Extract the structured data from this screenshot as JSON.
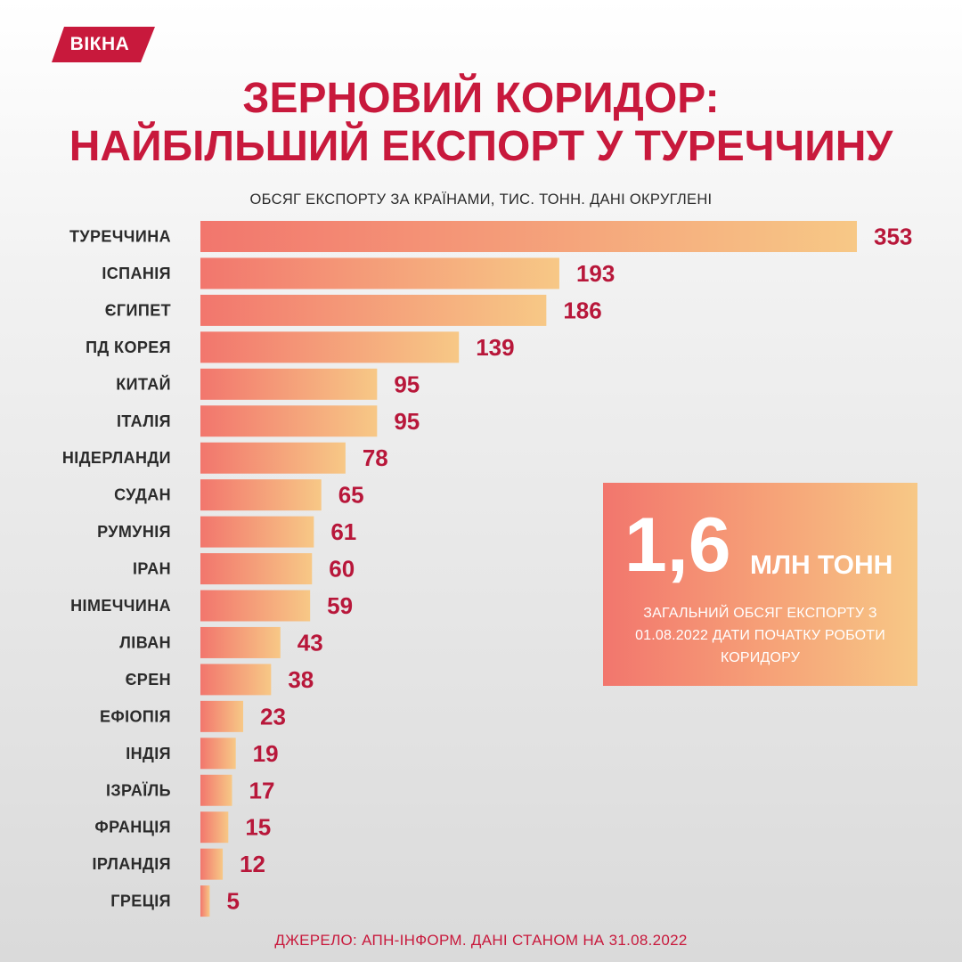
{
  "brand": {
    "logo_text": "ВІКНА",
    "color": "#c8193c"
  },
  "title": {
    "line1": "ЗЕРНОВИЙ КОРИДОР:",
    "line2": "НАЙБІЛЬШИЙ ЕКСПОРТ У ТУРЕЧЧИНУ"
  },
  "subtitle": "ОБСЯГ ЕКСПОРТУ ЗА КРАЇНАМИ, ТИС. ТОНН. ДАНІ ОКРУГЛЕНІ",
  "chart_data": {
    "type": "bar",
    "orientation": "horizontal",
    "title": "ЗЕРНОВИЙ КОРИДОР: НАЙБІЛЬШИЙ ЕКСПОРТ У ТУРЕЧЧИНУ",
    "subtitle": "ОБСЯГ ЕКСПОРТУ ЗА КРАЇНАМИ, ТИС. ТОНН. ДАНІ ОКРУГЛЕНІ",
    "categories": [
      "ТУРЕЧЧИНА",
      "ІСПАНІЯ",
      "ЄГИПЕТ",
      "ПД КОРЕЯ",
      "КИТАЙ",
      "ІТАЛІЯ",
      "НІДЕРЛАНДИ",
      "СУДАН",
      "РУМУНІЯ",
      "ІРАН",
      "НІМЕЧЧИНА",
      "ЛІВАН",
      "ЄРЕН",
      "ЕФІОПІЯ",
      "ІНДІЯ",
      "ІЗРАЇЛЬ",
      "ФРАНЦІЯ",
      "ІРЛАНДІЯ",
      "ГРЕЦІЯ"
    ],
    "values": [
      353,
      193,
      186,
      139,
      95,
      95,
      78,
      65,
      61,
      60,
      59,
      43,
      38,
      23,
      19,
      17,
      15,
      12,
      5
    ],
    "data_labels": true,
    "grid": false,
    "legend": "none",
    "bar_gradient": [
      "#f2766d",
      "#f7c886"
    ],
    "value_color": "#b8173a"
  },
  "total": {
    "value": "1,6",
    "unit": "МЛН ТОНН",
    "description": "ЗАГАЛЬНИЙ ОБСЯГ ЕКСПОРТУ З 01.08.2022 ДАТИ ПОЧАТКУ РОБОТИ КОРИДОРУ"
  },
  "source": "ДЖЕРЕЛО: АПН-ІНФОРМ. ДАНІ СТАНОМ НА 31.08.2022"
}
